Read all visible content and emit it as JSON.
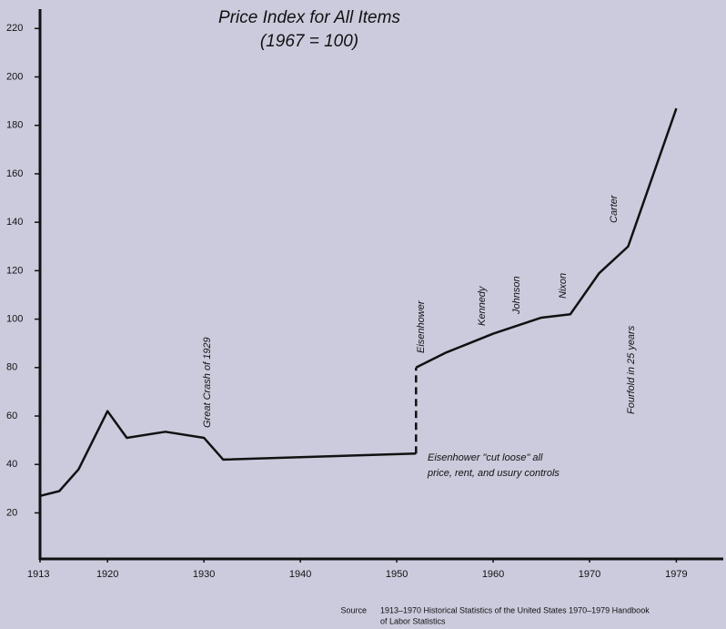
{
  "chart_data": {
    "type": "line",
    "title": [
      "Price Index for All Items",
      "(1967 = 100)"
    ],
    "xlim": [
      1913,
      1985
    ],
    "ylim": [
      1,
      228
    ],
    "xticks": [
      1913,
      1920,
      1930,
      1940,
      1950,
      1960,
      1970,
      1979
    ],
    "yticks": [
      20,
      40,
      60,
      80,
      100,
      120,
      140,
      160,
      180,
      200,
      220
    ],
    "color": "#111111",
    "series": [
      {
        "style": "solid",
        "x": [
          1913,
          1915,
          1917,
          1920,
          1922,
          1926,
          1930,
          1932,
          1952
        ],
        "values": [
          27,
          29,
          38,
          62,
          51,
          53.5,
          51,
          42,
          44.5
        ]
      },
      {
        "style": "dashed",
        "x": [
          1952,
          1952
        ],
        "values": [
          44.5,
          80
        ]
      },
      {
        "style": "solid",
        "x": [
          1952,
          1955,
          1960,
          1965,
          1968,
          1971,
          1974,
          1979
        ],
        "values": [
          80,
          86,
          94,
          100.6,
          102,
          119,
          130,
          187
        ]
      }
    ],
    "annotations": [
      "Great Crash of 1929",
      "Eisenhower",
      "Kennedy",
      "Johnson",
      "Nixon",
      "Carter",
      "Fourfold in 25 years"
    ],
    "note": [
      "Eisenhower \"cut loose\" all",
      "price, rent, and usury controls"
    ],
    "source_label": "Source",
    "source": [
      "1913–1970 Historical Statistics of the United States  1970–1979 Handbook",
      "of Labor Statistics"
    ]
  }
}
